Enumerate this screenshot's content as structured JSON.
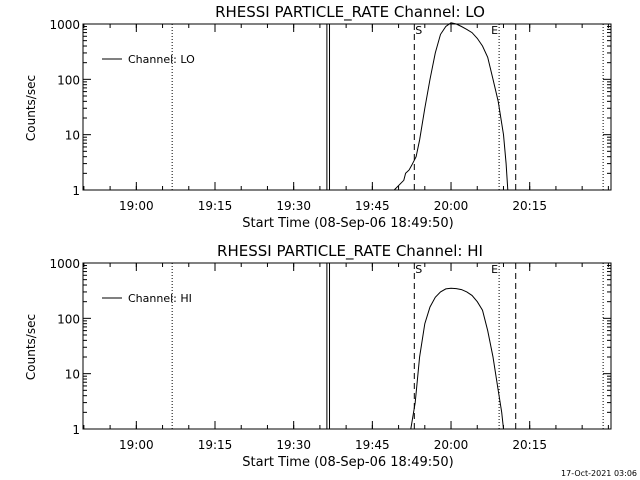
{
  "chart_data": [
    {
      "type": "line",
      "title": "RHESSI PARTICLE_RATE Channel: LO",
      "xlabel": "Start Time (08-Sep-06 18:49:50)",
      "ylabel": "Counts/sec",
      "yscale": "log",
      "ylim": [
        1,
        1000
      ],
      "xlim": [
        "18:49:50",
        "20:30:30"
      ],
      "x_ticks": [
        "19:00",
        "19:15",
        "19:30",
        "19:45",
        "20:00",
        "20:15"
      ],
      "y_ticks": [
        "1",
        "10",
        "100",
        "1000"
      ],
      "grid": false,
      "legend": {
        "position": "top-left",
        "entries": [
          "Channel: LO"
        ]
      },
      "series": [
        {
          "name": "Channel: LO",
          "x": [
            "19:49:10",
            "19:51:00",
            "19:51:20",
            "19:52:00",
            "19:52:30",
            "19:53:20",
            "19:54:00",
            "19:55:00",
            "19:56:00",
            "19:57:00",
            "19:58:00",
            "19:59:00",
            "20:00:00",
            "20:01:00",
            "20:02:00",
            "20:03:00",
            "20:04:00",
            "20:05:00",
            "20:06:00",
            "20:07:00",
            "20:08:00",
            "20:09:00",
            "20:10:00",
            "20:10:30",
            "20:10:50"
          ],
          "values": [
            1.0,
            1.5,
            2.0,
            2.3,
            2.8,
            4.0,
            8,
            30,
            100,
            300,
            650,
            900,
            1050,
            1000,
            900,
            800,
            700,
            550,
            400,
            250,
            100,
            40,
            10,
            3,
            1.0
          ]
        }
      ],
      "vlines": [
        {
          "time": "19:06:50",
          "style": "dotted"
        },
        {
          "time": "19:36:20",
          "style": "solid"
        },
        {
          "time": "19:36:50",
          "style": "solid"
        },
        {
          "time": "19:53:00",
          "style": "dashed",
          "label": "S"
        },
        {
          "time": "20:09:10",
          "style": "dotted",
          "label": "E"
        },
        {
          "time": "20:12:20",
          "style": "dashed"
        },
        {
          "time": "20:29:00",
          "style": "dotted"
        }
      ]
    },
    {
      "type": "line",
      "title": "RHESSI PARTICLE_RATE Channel: HI",
      "xlabel": "Start Time (08-Sep-06 18:49:50)",
      "ylabel": "Counts/sec",
      "yscale": "log",
      "ylim": [
        1,
        1000
      ],
      "xlim": [
        "18:49:50",
        "20:30:30"
      ],
      "x_ticks": [
        "19:00",
        "19:15",
        "19:30",
        "19:45",
        "20:00",
        "20:15"
      ],
      "y_ticks": [
        "1",
        "10",
        "100",
        "1000"
      ],
      "grid": false,
      "legend": {
        "position": "top-left",
        "entries": [
          "Channel: HI"
        ]
      },
      "series": [
        {
          "name": "Channel: HI",
          "x": [
            "19:52:20",
            "19:53:10",
            "19:54:00",
            "19:55:00",
            "19:56:00",
            "19:57:00",
            "19:58:00",
            "19:59:00",
            "20:00:00",
            "20:01:00",
            "20:02:00",
            "20:03:00",
            "20:04:00",
            "20:05:00",
            "20:06:00",
            "20:07:00",
            "20:08:00",
            "20:09:00",
            "20:09:40",
            "20:10:00"
          ],
          "values": [
            1.0,
            3,
            20,
            80,
            160,
            240,
            300,
            340,
            350,
            345,
            330,
            300,
            260,
            200,
            140,
            60,
            20,
            5,
            2,
            1.0
          ]
        }
      ],
      "vlines": [
        {
          "time": "19:06:50",
          "style": "dotted"
        },
        {
          "time": "19:36:20",
          "style": "solid"
        },
        {
          "time": "19:36:50",
          "style": "solid"
        },
        {
          "time": "19:53:00",
          "style": "dashed",
          "label": "S"
        },
        {
          "time": "20:09:10",
          "style": "dotted",
          "label": "E"
        },
        {
          "time": "20:12:20",
          "style": "dashed"
        },
        {
          "time": "20:29:00",
          "style": "dotted"
        }
      ]
    }
  ],
  "footer": {
    "timestamp": "17-Oct-2021 03:06"
  }
}
